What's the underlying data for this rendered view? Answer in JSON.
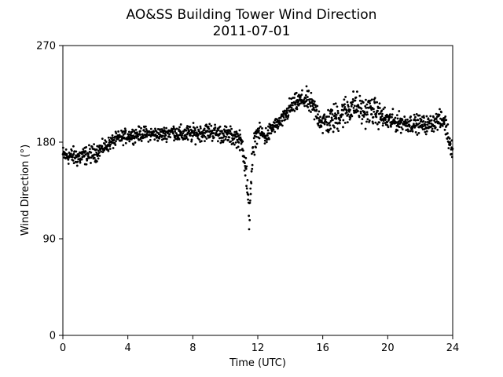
{
  "chart_data": {
    "type": "scatter",
    "title": "AO&SS Building Tower Wind Direction",
    "subtitle": "2011-07-01",
    "xlabel": "Time (UTC)",
    "ylabel": "Wind Direction (°)",
    "xlim": [
      0,
      24
    ],
    "ylim": [
      0,
      270
    ],
    "xticks": [
      0,
      4,
      8,
      12,
      16,
      20,
      24
    ],
    "yticks": [
      0,
      90,
      180,
      270
    ],
    "grid": false,
    "marker_color": "#000000",
    "profile": [
      [
        0.0,
        168,
        5
      ],
      [
        0.5,
        167,
        5
      ],
      [
        1.0,
        166,
        6
      ],
      [
        1.5,
        168,
        5
      ],
      [
        2.0,
        170,
        5
      ],
      [
        2.5,
        175,
        4
      ],
      [
        3.0,
        180,
        4
      ],
      [
        3.5,
        184,
        4
      ],
      [
        4.0,
        186,
        4
      ],
      [
        5.0,
        188,
        4
      ],
      [
        6.0,
        187,
        4
      ],
      [
        6.8,
        190,
        4
      ],
      [
        7.2,
        187,
        5
      ],
      [
        8.0,
        188,
        5
      ],
      [
        9.0,
        190,
        5
      ],
      [
        10.0,
        187,
        5
      ],
      [
        10.8,
        184,
        5
      ],
      [
        11.1,
        175,
        7
      ],
      [
        11.3,
        150,
        12
      ],
      [
        11.45,
        108,
        10
      ],
      [
        11.6,
        150,
        12
      ],
      [
        11.8,
        180,
        6
      ],
      [
        12.0,
        190,
        4
      ],
      [
        12.5,
        185,
        6
      ],
      [
        13.0,
        195,
        4
      ],
      [
        13.5,
        200,
        4
      ],
      [
        14.0,
        212,
        6
      ],
      [
        14.5,
        218,
        5
      ],
      [
        15.0,
        220,
        6
      ],
      [
        15.5,
        210,
        7
      ],
      [
        16.0,
        198,
        7
      ],
      [
        16.5,
        200,
        8
      ],
      [
        17.0,
        205,
        9
      ],
      [
        17.5,
        210,
        9
      ],
      [
        18.0,
        215,
        8
      ],
      [
        18.5,
        208,
        8
      ],
      [
        19.0,
        210,
        8
      ],
      [
        19.5,
        205,
        7
      ],
      [
        20.0,
        200,
        6
      ],
      [
        21.0,
        198,
        5
      ],
      [
        22.0,
        197,
        5
      ],
      [
        22.5,
        196,
        5
      ],
      [
        23.0,
        200,
        5
      ],
      [
        23.5,
        200,
        6
      ],
      [
        23.8,
        180,
        6
      ],
      [
        24.0,
        175,
        6
      ]
    ],
    "samples_per_hour": 60
  }
}
